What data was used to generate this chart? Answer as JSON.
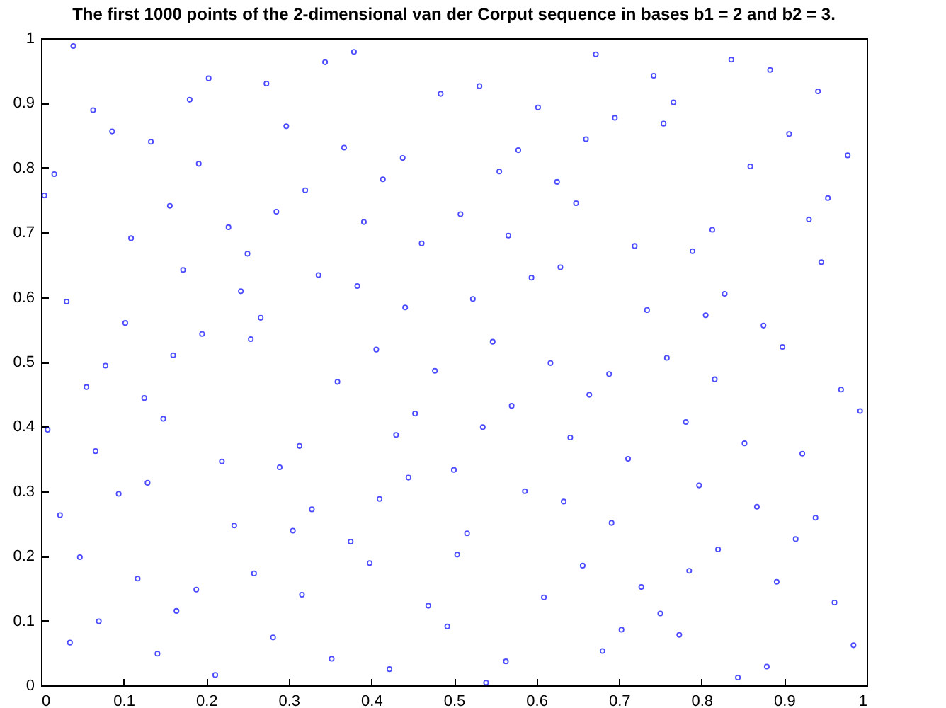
{
  "chart_data": {
    "type": "scatter",
    "title": "The first 1000 points of the 2-dimensional van der Corput sequence in bases b1 = 2 and b2 = 3.",
    "marker": "circle",
    "grid": false,
    "xlim": [
      0,
      1
    ],
    "xticks": [
      0,
      0.1,
      0.2,
      0.3,
      0.4,
      0.5,
      0.6,
      0.7,
      0.8,
      0.9,
      1
    ],
    "ylim": [
      0,
      1
    ],
    "yticks": [
      0,
      0.1,
      0.2,
      0.3,
      0.4,
      0.5,
      0.6,
      0.7,
      0.8,
      0.9,
      1
    ],
    "series": [
      {
        "color": "#0000ff",
        "x": [
          0.5,
          0.25,
          0.75,
          0.125,
          0.625,
          0.375,
          0.875,
          0.063,
          0.563,
          0.313,
          0.813,
          0.188,
          0.688,
          0.438,
          0.938,
          0.031,
          0.531,
          0.281,
          0.781,
          0.156,
          0.656,
          0.406,
          0.906,
          0.094,
          0.594,
          0.344,
          0.844,
          0.219,
          0.719,
          0.469,
          0.969,
          0.016,
          0.516,
          0.266,
          0.766,
          0.141,
          0.641,
          0.391,
          0.891,
          0.078,
          0.578,
          0.328,
          0.828,
          0.203,
          0.703,
          0.453,
          0.953,
          0.047,
          0.547,
          0.297,
          0.797,
          0.172,
          0.672,
          0.422,
          0.922,
          0.109,
          0.609,
          0.359,
          0.859,
          0.234,
          0.734,
          0.484,
          0.984,
          0.008,
          0.508,
          0.258,
          0.758,
          0.133,
          0.633,
          0.383,
          0.883,
          0.07,
          0.57,
          0.32,
          0.82,
          0.195,
          0.695,
          0.445,
          0.945,
          0.039,
          0.539,
          0.289,
          0.789,
          0.164,
          0.664,
          0.414,
          0.914,
          0.102,
          0.602,
          0.352,
          0.852,
          0.227,
          0.727,
          0.477,
          0.977,
          0.023,
          0.523,
          0.273,
          0.773,
          0.148,
          0.648,
          0.398,
          0.898,
          0.086,
          0.586,
          0.336,
          0.836,
          0.211,
          0.711,
          0.461,
          0.961,
          0.055,
          0.555,
          0.305,
          0.805,
          0.18,
          0.68,
          0.43,
          0.93,
          0.117,
          0.617,
          0.367,
          0.867,
          0.242,
          0.742,
          0.492,
          0.992,
          0.004,
          0.504,
          0.254,
          0.754,
          0.129,
          0.629,
          0.379,
          0.879,
          0.066,
          0.566,
          0.316,
          0.816,
          0.191,
          0.691,
          0.441,
          0.941,
          0.035,
          0.535,
          0.285,
          0.785,
          0.16,
          0.66,
          0.41
        ],
        "values": [
          0.333,
          0.667,
          0.111,
          0.444,
          0.778,
          0.222,
          0.556,
          0.889,
          0.037,
          0.37,
          0.704,
          0.148,
          0.481,
          0.815,
          0.259,
          0.593,
          0.926,
          0.074,
          0.407,
          0.741,
          0.185,
          0.519,
          0.852,
          0.296,
          0.63,
          0.963,
          0.012,
          0.346,
          0.679,
          0.123,
          0.457,
          0.79,
          0.235,
          0.568,
          0.901,
          0.049,
          0.383,
          0.716,
          0.16,
          0.494,
          0.827,
          0.272,
          0.605,
          0.938,
          0.086,
          0.42,
          0.753,
          0.198,
          0.531,
          0.864,
          0.309,
          0.642,
          0.975,
          0.025,
          0.358,
          0.691,
          0.136,
          0.469,
          0.802,
          0.247,
          0.58,
          0.914,
          0.062,
          0.395,
          0.728,
          0.173,
          0.506,
          0.84,
          0.284,
          0.617,
          0.951,
          0.099,
          0.432,
          0.765,
          0.21,
          0.543,
          0.877,
          0.321,
          0.654,
          0.988,
          0.004,
          0.337,
          0.671,
          0.115,
          0.449,
          0.782,
          0.226,
          0.56,
          0.893,
          0.041,
          0.374,
          0.708,
          0.152,
          0.486,
          0.819,
          0.263,
          0.597,
          0.93,
          0.078,
          0.412,
          0.745,
          0.189,
          0.523,
          0.856,
          0.3,
          0.634,
          0.967,
          0.016,
          0.35,
          0.683,
          0.128,
          0.461,
          0.794,
          0.239,
          0.572,
          0.905,
          0.053,
          0.387,
          0.72,
          0.165,
          0.498,
          0.831,
          0.276,
          0.609,
          0.942,
          0.091,
          0.424,
          0.757,
          0.202,
          0.535,
          0.868,
          0.313,
          0.646,
          0.979,
          0.029,
          0.362,
          0.695,
          0.14,
          0.473,
          0.806,
          0.251,
          0.584,
          0.918,
          0.066,
          0.399,
          0.732,
          0.177,
          0.51,
          0.844,
          0.288
        ]
      }
    ]
  }
}
